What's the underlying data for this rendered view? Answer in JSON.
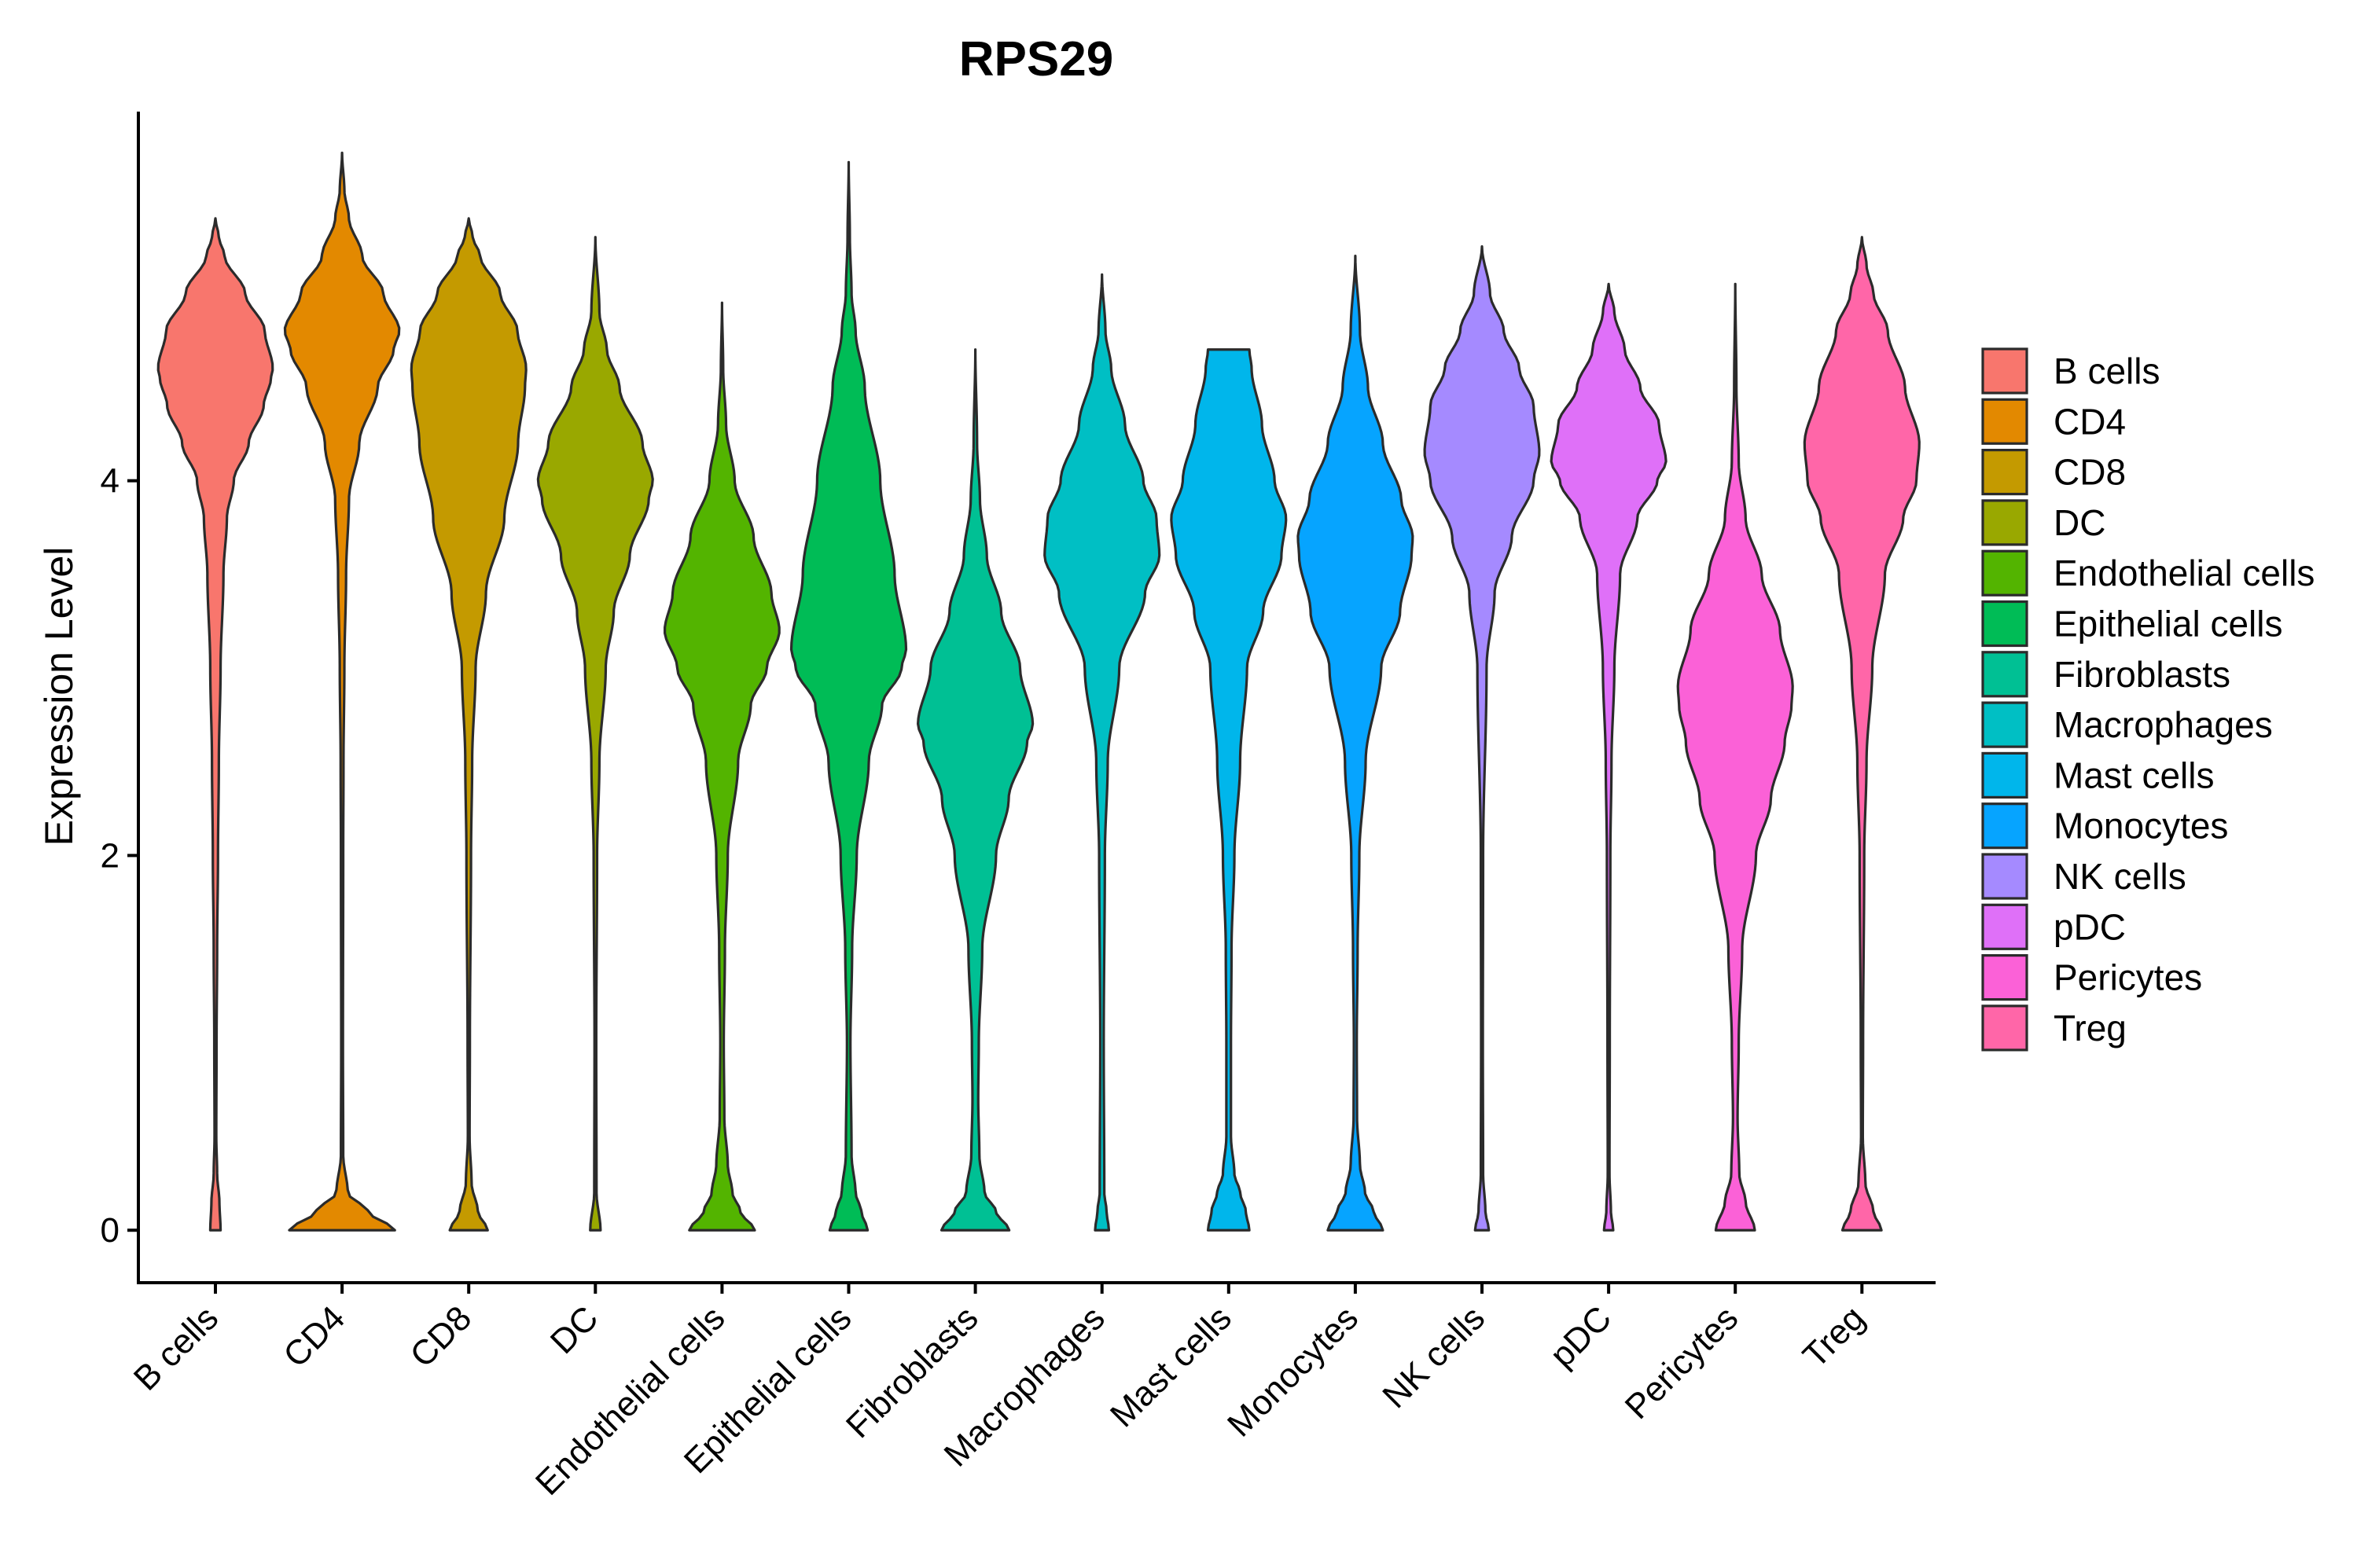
{
  "chart_data": {
    "type": "violin",
    "title": "RPS29",
    "xlabel": "",
    "ylabel": "Expression Level",
    "ylim": [
      -0.28,
      5.97
    ],
    "yticks": [
      0,
      2,
      4
    ],
    "categories": [
      "B cells",
      "CD4",
      "CD8",
      "DC",
      "Endothelial cells",
      "Epithelial cells",
      "Fibroblasts",
      "Macrophages",
      "Mast cells",
      "Monocytes",
      "NK cells",
      "pDC",
      "Pericytes",
      "Treg"
    ],
    "colors": [
      "#F8766D",
      "#E38900",
      "#C49A00",
      "#99A800",
      "#53B400",
      "#00BC56",
      "#00C094",
      "#00BFC4",
      "#00B6EB",
      "#06A4FF",
      "#A58AFF",
      "#DF70F8",
      "#FB61D7",
      "#FF66A8"
    ],
    "legend_position": "right",
    "violins": [
      {
        "name": "B cells",
        "max": 5.4,
        "profile": [
          [
            0,
            0.09
          ],
          [
            0.15,
            0.07
          ],
          [
            0.3,
            0.03
          ],
          [
            0.5,
            0.015
          ],
          [
            1.0,
            0.02
          ],
          [
            1.5,
            0.03
          ],
          [
            2.0,
            0.045
          ],
          [
            2.5,
            0.06
          ],
          [
            3.0,
            0.09
          ],
          [
            3.5,
            0.14
          ],
          [
            3.8,
            0.2
          ],
          [
            4.0,
            0.32
          ],
          [
            4.2,
            0.58
          ],
          [
            4.4,
            0.84
          ],
          [
            4.55,
            0.97
          ],
          [
            4.6,
            1.0
          ],
          [
            4.8,
            0.86
          ],
          [
            5.0,
            0.52
          ],
          [
            5.2,
            0.16
          ],
          [
            5.3,
            0.06
          ],
          [
            5.4,
            0.0
          ]
        ]
      },
      {
        "name": "CD4",
        "max": 5.75,
        "profile": [
          [
            0,
            0.92
          ],
          [
            0.1,
            0.45
          ],
          [
            0.2,
            0.1
          ],
          [
            0.4,
            0.02
          ],
          [
            1.0,
            0.015
          ],
          [
            2.0,
            0.02
          ],
          [
            2.5,
            0.025
          ],
          [
            3.0,
            0.04
          ],
          [
            3.5,
            0.07
          ],
          [
            3.9,
            0.12
          ],
          [
            4.2,
            0.3
          ],
          [
            4.5,
            0.62
          ],
          [
            4.7,
            0.9
          ],
          [
            4.8,
            1.0
          ],
          [
            5.0,
            0.72
          ],
          [
            5.2,
            0.35
          ],
          [
            5.4,
            0.12
          ],
          [
            5.55,
            0.04
          ],
          [
            5.75,
            0.0
          ]
        ]
      },
      {
        "name": "CD8",
        "max": 5.4,
        "profile": [
          [
            0,
            0.33
          ],
          [
            0.1,
            0.16
          ],
          [
            0.25,
            0.05
          ],
          [
            0.5,
            0.015
          ],
          [
            1.0,
            0.02
          ],
          [
            2.0,
            0.04
          ],
          [
            2.5,
            0.06
          ],
          [
            3.0,
            0.12
          ],
          [
            3.4,
            0.3
          ],
          [
            3.8,
            0.62
          ],
          [
            4.2,
            0.86
          ],
          [
            4.5,
            0.98
          ],
          [
            4.6,
            1.0
          ],
          [
            4.8,
            0.85
          ],
          [
            5.0,
            0.55
          ],
          [
            5.2,
            0.2
          ],
          [
            5.3,
            0.07
          ],
          [
            5.4,
            0.0
          ]
        ]
      },
      {
        "name": "DC",
        "max": 5.3,
        "profile": [
          [
            0,
            0.09
          ],
          [
            0.2,
            0.02
          ],
          [
            1.0,
            0.015
          ],
          [
            2.0,
            0.03
          ],
          [
            2.5,
            0.07
          ],
          [
            3.0,
            0.18
          ],
          [
            3.3,
            0.32
          ],
          [
            3.6,
            0.6
          ],
          [
            3.9,
            0.93
          ],
          [
            4.0,
            1.0
          ],
          [
            4.2,
            0.82
          ],
          [
            4.5,
            0.42
          ],
          [
            4.7,
            0.2
          ],
          [
            4.9,
            0.07
          ],
          [
            5.3,
            0.0
          ]
        ]
      },
      {
        "name": "Endothelial cells",
        "max": 4.95,
        "profile": [
          [
            0,
            0.57
          ],
          [
            0.1,
            0.32
          ],
          [
            0.2,
            0.18
          ],
          [
            0.35,
            0.1
          ],
          [
            0.6,
            0.04
          ],
          [
            1.0,
            0.03
          ],
          [
            1.5,
            0.05
          ],
          [
            2.0,
            0.1
          ],
          [
            2.5,
            0.28
          ],
          [
            2.8,
            0.5
          ],
          [
            3.0,
            0.78
          ],
          [
            3.2,
            1.0
          ],
          [
            3.4,
            0.86
          ],
          [
            3.7,
            0.55
          ],
          [
            4.0,
            0.22
          ],
          [
            4.3,
            0.07
          ],
          [
            4.6,
            0.02
          ],
          [
            4.95,
            0.0
          ]
        ]
      },
      {
        "name": "Epithelial cells",
        "max": 5.7,
        "profile": [
          [
            0,
            0.33
          ],
          [
            0.1,
            0.22
          ],
          [
            0.2,
            0.12
          ],
          [
            0.4,
            0.05
          ],
          [
            1.0,
            0.03
          ],
          [
            1.5,
            0.06
          ],
          [
            2.0,
            0.14
          ],
          [
            2.5,
            0.35
          ],
          [
            2.8,
            0.58
          ],
          [
            3.0,
            0.92
          ],
          [
            3.1,
            1.0
          ],
          [
            3.5,
            0.8
          ],
          [
            4.0,
            0.55
          ],
          [
            4.5,
            0.28
          ],
          [
            4.8,
            0.12
          ],
          [
            5.0,
            0.05
          ],
          [
            5.3,
            0.02
          ],
          [
            5.7,
            0.0
          ]
        ]
      },
      {
        "name": "Fibroblasts",
        "max": 4.7,
        "profile": [
          [
            0,
            0.59
          ],
          [
            0.1,
            0.36
          ],
          [
            0.2,
            0.16
          ],
          [
            0.4,
            0.07
          ],
          [
            0.7,
            0.05
          ],
          [
            1.0,
            0.06
          ],
          [
            1.5,
            0.12
          ],
          [
            2.0,
            0.36
          ],
          [
            2.3,
            0.58
          ],
          [
            2.6,
            0.9
          ],
          [
            2.7,
            1.0
          ],
          [
            3.0,
            0.78
          ],
          [
            3.3,
            0.45
          ],
          [
            3.6,
            0.2
          ],
          [
            3.9,
            0.08
          ],
          [
            4.2,
            0.03
          ],
          [
            4.7,
            0.0
          ]
        ]
      },
      {
        "name": "Macrophages",
        "max": 5.1,
        "profile": [
          [
            0,
            0.12
          ],
          [
            0.1,
            0.08
          ],
          [
            0.2,
            0.04
          ],
          [
            1.0,
            0.03
          ],
          [
            2.0,
            0.05
          ],
          [
            2.5,
            0.1
          ],
          [
            3.0,
            0.3
          ],
          [
            3.4,
            0.75
          ],
          [
            3.6,
            1.0
          ],
          [
            3.8,
            0.95
          ],
          [
            4.0,
            0.72
          ],
          [
            4.3,
            0.4
          ],
          [
            4.6,
            0.16
          ],
          [
            4.8,
            0.06
          ],
          [
            5.1,
            0.0
          ]
        ]
      },
      {
        "name": "Mast cells",
        "max": 4.7,
        "profile": [
          [
            0,
            0.36
          ],
          [
            0.1,
            0.3
          ],
          [
            0.2,
            0.2
          ],
          [
            0.3,
            0.1
          ],
          [
            0.5,
            0.04
          ],
          [
            1.0,
            0.04
          ],
          [
            1.5,
            0.05
          ],
          [
            2.0,
            0.1
          ],
          [
            2.5,
            0.2
          ],
          [
            3.0,
            0.32
          ],
          [
            3.3,
            0.6
          ],
          [
            3.6,
            0.92
          ],
          [
            3.8,
            1.0
          ],
          [
            4.0,
            0.8
          ],
          [
            4.3,
            0.58
          ],
          [
            4.6,
            0.4
          ],
          [
            4.7,
            0.36
          ]
        ]
      },
      {
        "name": "Monocytes",
        "max": 5.2,
        "profile": [
          [
            0,
            0.48
          ],
          [
            0.1,
            0.32
          ],
          [
            0.2,
            0.17
          ],
          [
            0.35,
            0.08
          ],
          [
            0.6,
            0.03
          ],
          [
            1.0,
            0.025
          ],
          [
            1.5,
            0.04
          ],
          [
            2.0,
            0.07
          ],
          [
            2.5,
            0.18
          ],
          [
            3.0,
            0.45
          ],
          [
            3.3,
            0.78
          ],
          [
            3.6,
            0.98
          ],
          [
            3.7,
            1.0
          ],
          [
            3.9,
            0.8
          ],
          [
            4.2,
            0.48
          ],
          [
            4.5,
            0.22
          ],
          [
            4.8,
            0.08
          ],
          [
            5.2,
            0.0
          ]
        ]
      },
      {
        "name": "NK cells",
        "max": 5.25,
        "profile": [
          [
            0,
            0.12
          ],
          [
            0.1,
            0.06
          ],
          [
            0.3,
            0.02
          ],
          [
            1.0,
            0.015
          ],
          [
            2.0,
            0.02
          ],
          [
            3.0,
            0.08
          ],
          [
            3.4,
            0.22
          ],
          [
            3.7,
            0.52
          ],
          [
            4.0,
            0.9
          ],
          [
            4.15,
            1.0
          ],
          [
            4.4,
            0.9
          ],
          [
            4.6,
            0.65
          ],
          [
            4.8,
            0.38
          ],
          [
            5.0,
            0.14
          ],
          [
            5.25,
            0.0
          ]
        ]
      },
      {
        "name": "pDC",
        "max": 5.05,
        "profile": [
          [
            0,
            0.08
          ],
          [
            0.1,
            0.04
          ],
          [
            0.3,
            0.015
          ],
          [
            1.0,
            0.02
          ],
          [
            2.0,
            0.03
          ],
          [
            2.5,
            0.05
          ],
          [
            3.0,
            0.1
          ],
          [
            3.5,
            0.2
          ],
          [
            3.8,
            0.5
          ],
          [
            4.0,
            0.85
          ],
          [
            4.1,
            1.0
          ],
          [
            4.3,
            0.88
          ],
          [
            4.5,
            0.55
          ],
          [
            4.7,
            0.28
          ],
          [
            4.9,
            0.1
          ],
          [
            5.05,
            0.0
          ]
        ]
      },
      {
        "name": "Pericytes",
        "max": 5.05,
        "profile": [
          [
            0,
            0.34
          ],
          [
            0.15,
            0.18
          ],
          [
            0.3,
            0.07
          ],
          [
            0.6,
            0.04
          ],
          [
            1.0,
            0.06
          ],
          [
            1.5,
            0.12
          ],
          [
            2.0,
            0.36
          ],
          [
            2.3,
            0.62
          ],
          [
            2.6,
            0.86
          ],
          [
            2.8,
            0.98
          ],
          [
            2.9,
            1.0
          ],
          [
            3.2,
            0.78
          ],
          [
            3.5,
            0.46
          ],
          [
            3.8,
            0.18
          ],
          [
            4.1,
            0.06
          ],
          [
            4.5,
            0.02
          ],
          [
            5.05,
            0.0
          ]
        ]
      },
      {
        "name": "Treg",
        "max": 5.3,
        "profile": [
          [
            0,
            0.34
          ],
          [
            0.1,
            0.2
          ],
          [
            0.25,
            0.06
          ],
          [
            0.5,
            0.015
          ],
          [
            1.0,
            0.02
          ],
          [
            2.0,
            0.04
          ],
          [
            2.5,
            0.08
          ],
          [
            3.0,
            0.18
          ],
          [
            3.5,
            0.4
          ],
          [
            3.8,
            0.72
          ],
          [
            4.0,
            0.95
          ],
          [
            4.2,
            1.0
          ],
          [
            4.5,
            0.75
          ],
          [
            4.8,
            0.45
          ],
          [
            5.0,
            0.2
          ],
          [
            5.15,
            0.08
          ],
          [
            5.3,
            0.0
          ]
        ]
      }
    ]
  }
}
